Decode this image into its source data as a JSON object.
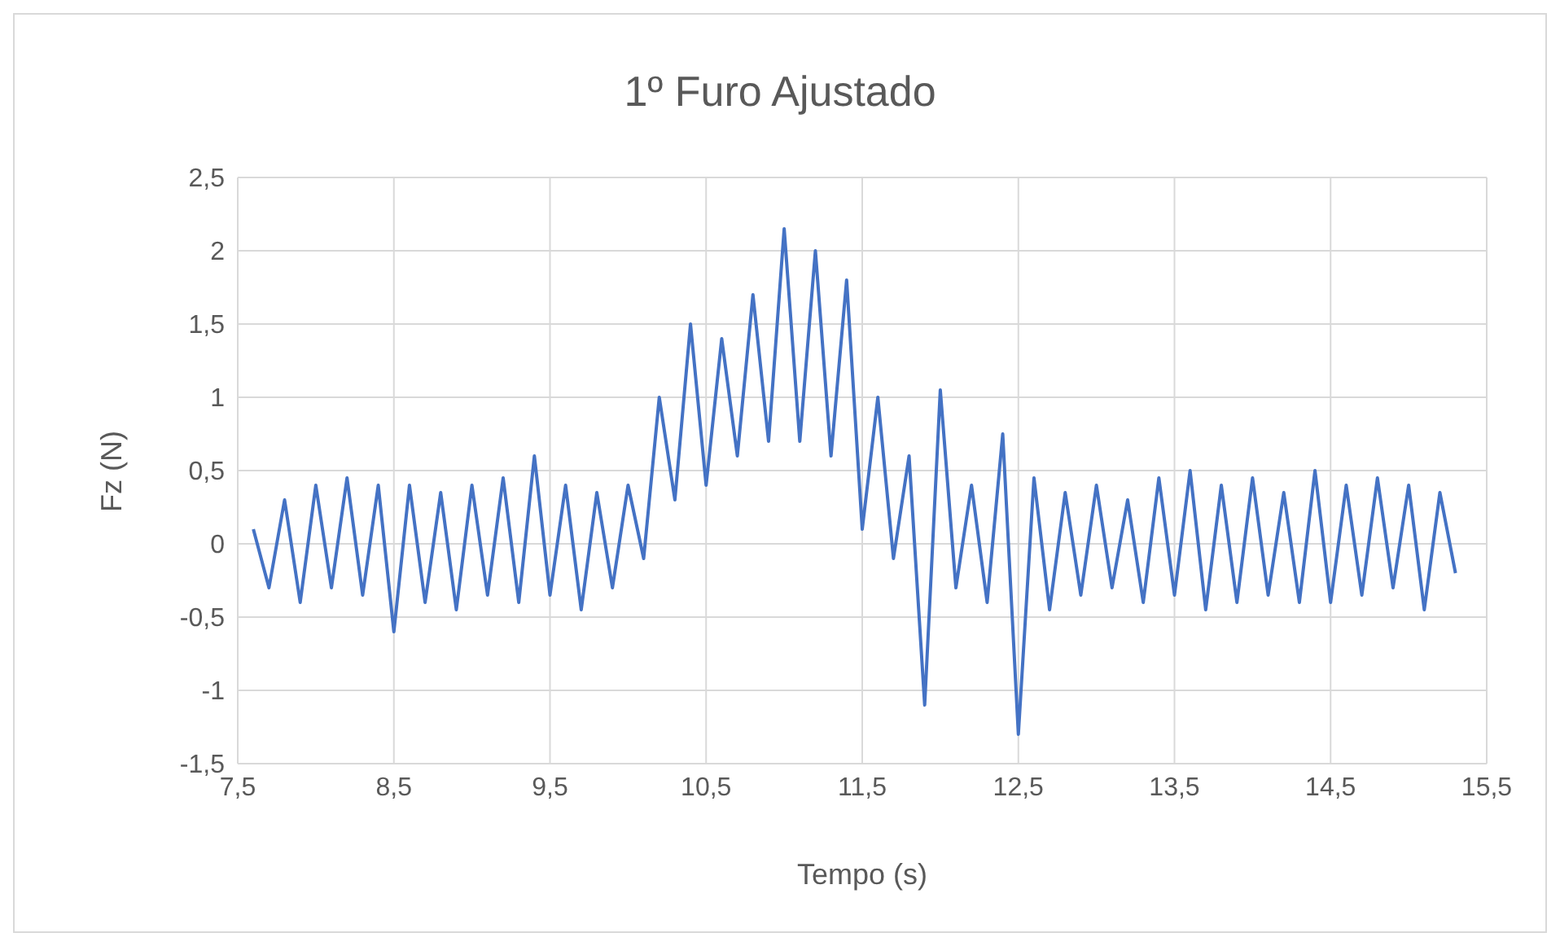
{
  "chart_data": {
    "type": "line",
    "title": "1º Furo Ajustado",
    "xlabel": "Tempo (s)",
    "ylabel": "Fz (N)",
    "x": [
      7.6,
      7.7,
      7.8,
      7.9,
      8.0,
      8.1,
      8.2,
      8.3,
      8.4,
      8.5,
      8.6,
      8.7,
      8.8,
      8.9,
      9.0,
      9.1,
      9.2,
      9.3,
      9.4,
      9.5,
      9.6,
      9.7,
      9.8,
      9.9,
      10.0,
      10.1,
      10.2,
      10.3,
      10.4,
      10.5,
      10.6,
      10.7,
      10.8,
      10.9,
      11.0,
      11.1,
      11.2,
      11.3,
      11.4,
      11.5,
      11.6,
      11.7,
      11.8,
      11.9,
      12.0,
      12.1,
      12.2,
      12.3,
      12.4,
      12.5,
      12.6,
      12.7,
      12.8,
      12.9,
      13.0,
      13.1,
      13.2,
      13.3,
      13.4,
      13.5,
      13.6,
      13.7,
      13.8,
      13.9,
      14.0,
      14.1,
      14.2,
      14.3,
      14.4,
      14.5,
      14.6,
      14.7,
      14.8,
      14.9,
      15.0,
      15.1,
      15.2,
      15.3
    ],
    "series": [
      {
        "color": "#4472c4",
        "values": [
          0.1,
          -0.3,
          0.3,
          -0.4,
          0.4,
          -0.3,
          0.45,
          -0.35,
          0.4,
          -0.6,
          0.4,
          -0.4,
          0.35,
          -0.45,
          0.4,
          -0.35,
          0.45,
          -0.4,
          0.6,
          -0.35,
          0.4,
          -0.45,
          0.35,
          -0.3,
          0.4,
          -0.1,
          1.0,
          0.3,
          1.5,
          0.4,
          1.4,
          0.6,
          1.7,
          0.7,
          2.15,
          0.7,
          2.0,
          0.6,
          1.8,
          0.1,
          1.0,
          -0.1,
          0.6,
          -1.1,
          1.05,
          -0.3,
          0.4,
          -0.4,
          0.75,
          -1.3,
          0.45,
          -0.45,
          0.35,
          -0.35,
          0.4,
          -0.3,
          0.3,
          -0.4,
          0.45,
          -0.35,
          0.5,
          -0.45,
          0.4,
          -0.4,
          0.45,
          -0.35,
          0.35,
          -0.4,
          0.5,
          -0.4,
          0.4,
          -0.35,
          0.45,
          -0.3,
          0.4,
          -0.45,
          0.35,
          -0.2
        ]
      }
    ],
    "xlim": [
      7.5,
      15.5
    ],
    "xticks": [
      {
        "value": 7.5,
        "label": "7,5"
      },
      {
        "value": 8.5,
        "label": "8,5"
      },
      {
        "value": 9.5,
        "label": "9,5"
      },
      {
        "value": 10.5,
        "label": "10,5"
      },
      {
        "value": 11.5,
        "label": "11,5"
      },
      {
        "value": 12.5,
        "label": "12,5"
      },
      {
        "value": 13.5,
        "label": "13,5"
      },
      {
        "value": 14.5,
        "label": "14,5"
      },
      {
        "value": 15.5,
        "label": "15,5"
      }
    ],
    "ylim": [
      -1.5,
      2.5
    ],
    "yticks": [
      {
        "value": -1.5,
        "label": "-1,5"
      },
      -1,
      {
        "value": -0.5,
        "label": "-0,5"
      },
      0,
      {
        "value": 0.5,
        "label": "0,5"
      },
      1,
      {
        "value": 1.5,
        "label": "1,5"
      },
      2,
      {
        "value": 2.5,
        "label": "2,5"
      }
    ],
    "grid": true,
    "marker": "none",
    "line_style": "solid",
    "legend": false
  }
}
